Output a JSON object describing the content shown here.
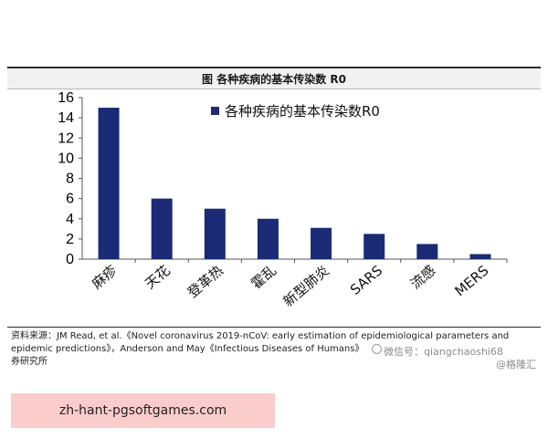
{
  "header": {
    "title": "图 各种疾病的基本传染数 R0"
  },
  "chart_data": {
    "type": "bar",
    "title": "",
    "legend": {
      "label": "各种疾病的基本传染数R0",
      "placement": "top-right"
    },
    "categories": [
      "麻疹",
      "天花",
      "登革热",
      "霍乱",
      "新型肺炎",
      "SARS",
      "流感",
      "MERS"
    ],
    "values": [
      15,
      6,
      5,
      4,
      3.1,
      2.5,
      1.5,
      0.5
    ],
    "ylim": [
      0,
      16
    ],
    "yticks": [
      "0",
      "2",
      "4",
      "6",
      "8",
      "10",
      "12",
      "14",
      "16"
    ],
    "xlabel": "",
    "ylabel": "",
    "grid": false,
    "bar_color": "#1a2a75"
  },
  "footer": {
    "source_line1": "资料来源：JM Read, et al.《Novel coronavirus 2019-nCoV: early estimation of epidemiological parameters and",
    "source_line2": "epidemic predictions》，Anderson and May《Infectious Diseases of Humans》",
    "source_line3": "券研究所",
    "watermark_wechat": "微信号：qiangchaoshi68",
    "watermark_gelonghui": "@格隆汇"
  },
  "banner": {
    "text": "zh-hant-pgsoftgames.com"
  }
}
